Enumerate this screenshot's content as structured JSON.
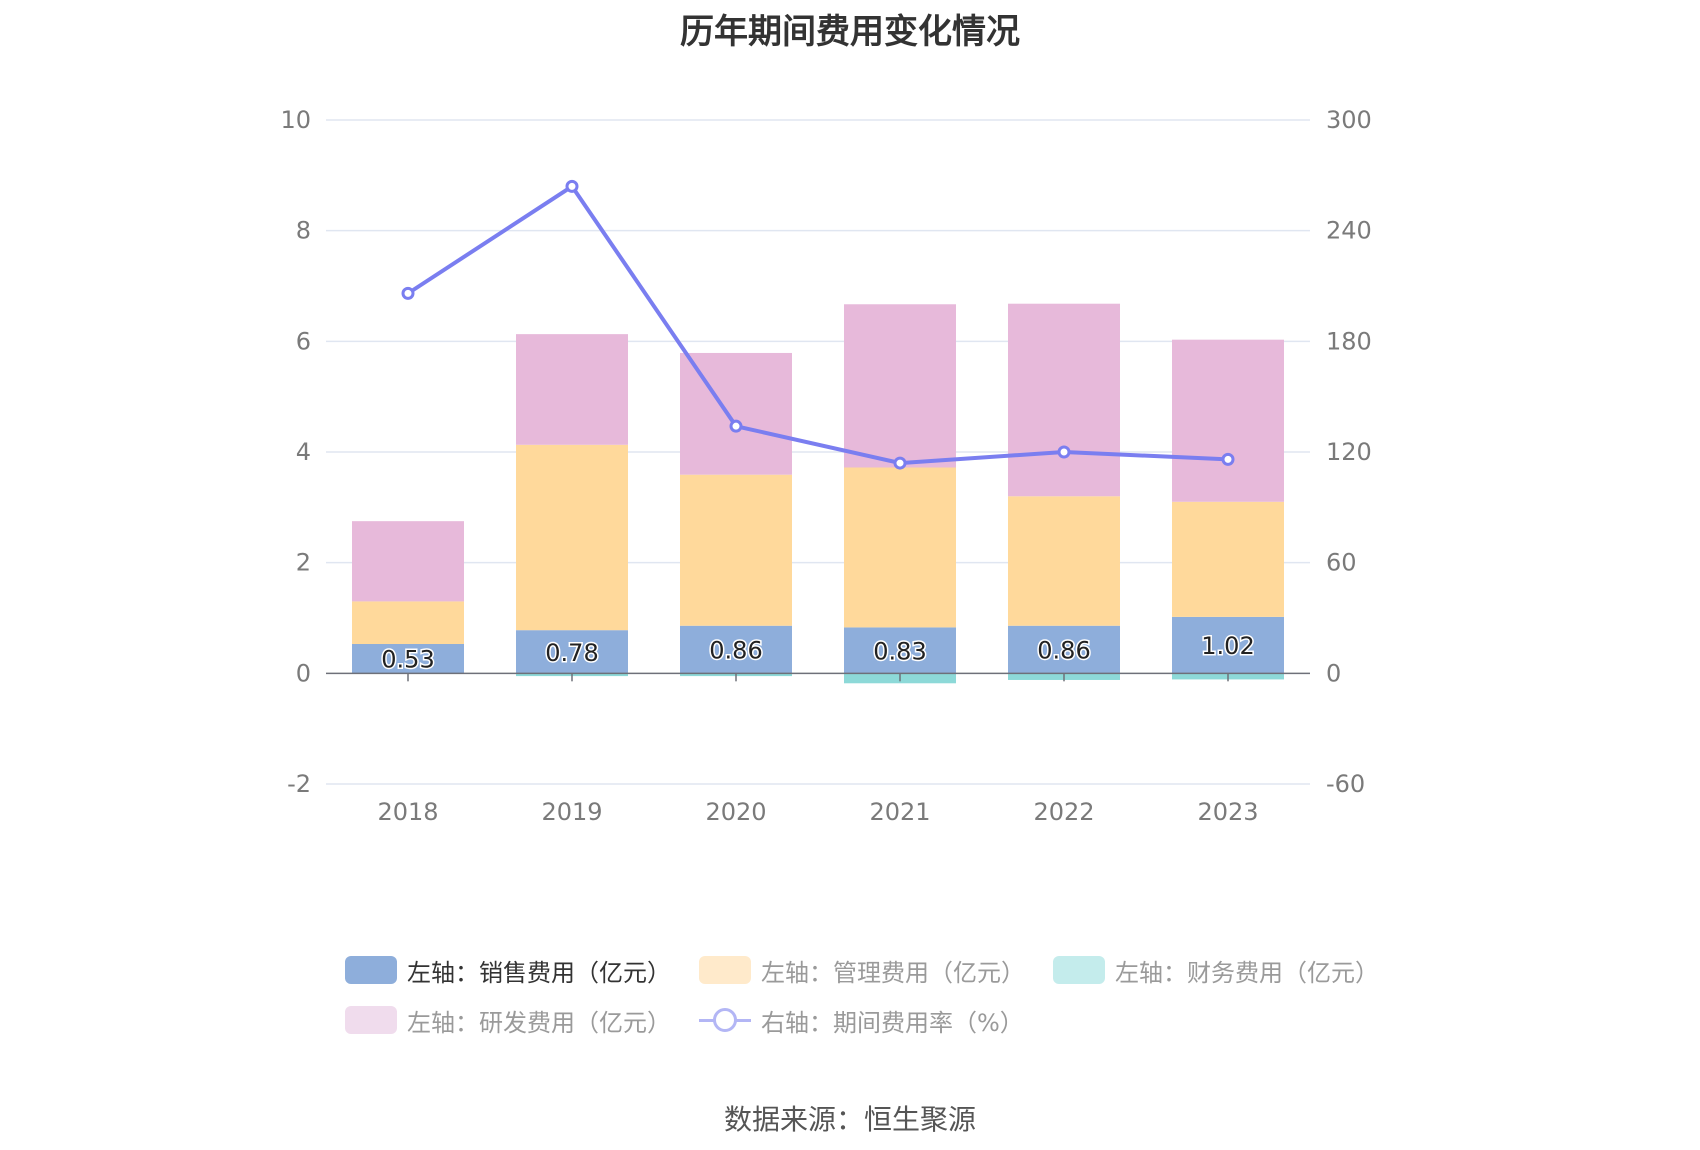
{
  "title": "历年期间费用变化情况",
  "source": "数据来源：恒生聚源",
  "legend": [
    {
      "label": "左轴：销售费用（亿元）",
      "color": "#8eaedb",
      "kind": "box",
      "active": true
    },
    {
      "label": "左轴：管理费用（亿元）",
      "color": "#ffeacb",
      "kind": "box",
      "active": false
    },
    {
      "label": "左轴：财务费用（亿元）",
      "color": "#c4ecec",
      "kind": "box",
      "active": false
    },
    {
      "label": "左轴：研发费用（亿元）",
      "color": "#f0dced",
      "kind": "box",
      "active": false
    },
    {
      "label": "右轴：期间费用率（%）",
      "color": "#b3b6f5",
      "kind": "line",
      "active": false
    }
  ],
  "chart_data": {
    "type": "bar",
    "stacked": true,
    "categories": [
      "2018",
      "2019",
      "2020",
      "2021",
      "2022",
      "2023"
    ],
    "y_left": {
      "min": -2,
      "max": 10,
      "ticks": [
        -2,
        0,
        2,
        4,
        6,
        8,
        10
      ]
    },
    "y_right": {
      "min": -60,
      "max": 300,
      "ticks": [
        -60,
        0,
        60,
        120,
        180,
        240,
        300
      ]
    },
    "series": [
      {
        "name": "左轴：销售费用（亿元）",
        "axis": "left",
        "color": "#8eaedb",
        "values": [
          0.53,
          0.78,
          0.86,
          0.83,
          0.86,
          1.02
        ],
        "labels": [
          "0.53",
          "0.78",
          "0.86",
          "0.83",
          "0.86",
          "1.02"
        ]
      },
      {
        "name": "左轴：管理费用（亿元）",
        "axis": "left",
        "color": "#ffd99b",
        "values": [
          0.77,
          3.35,
          2.73,
          2.89,
          2.34,
          2.08
        ]
      },
      {
        "name": "左轴：财务费用（亿元）",
        "axis": "left",
        "color": "#8dd9d8",
        "values": [
          0,
          -0.05,
          -0.05,
          -0.18,
          -0.12,
          -0.11
        ]
      },
      {
        "name": "左轴：研发费用（亿元）",
        "axis": "left",
        "color": "#e7b9da",
        "values": [
          1.45,
          2.0,
          2.2,
          2.95,
          3.48,
          2.93
        ]
      },
      {
        "name": "右轴：期间费用率（%）",
        "axis": "right",
        "type": "line",
        "color": "#7a7ef0",
        "values": [
          206,
          264,
          134,
          114,
          120,
          116
        ]
      }
    ],
    "grid": true,
    "legend_position": "bottom"
  }
}
